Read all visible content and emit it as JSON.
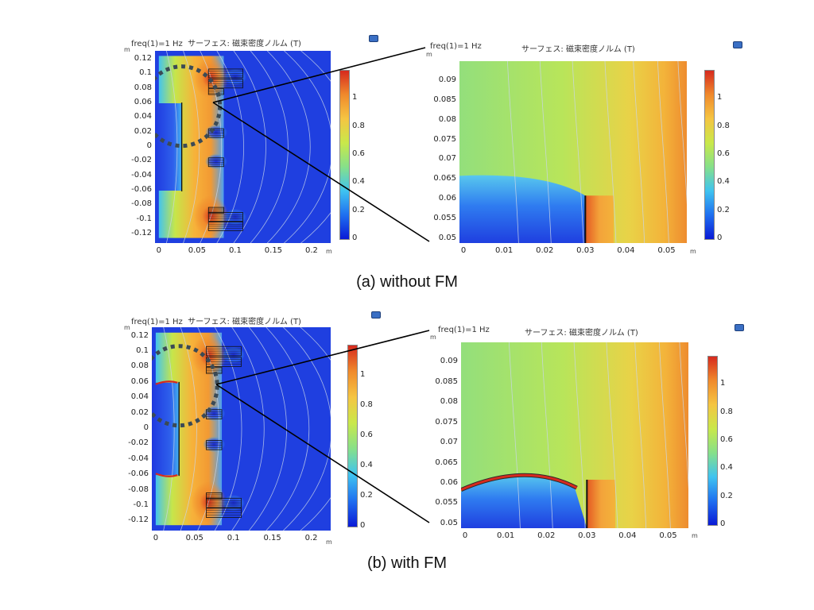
{
  "colors": {
    "field_low": "#1f3fe0",
    "field_high": "#e84a1e",
    "colormap": [
      "#0a1ad6",
      "#1f6ff0",
      "#3fc3f0",
      "#86e08a",
      "#c9e84a",
      "#f5c542",
      "#f08a2c",
      "#d62a1e"
    ],
    "circle": "#3b4a55",
    "contour": "#c9d6e8"
  },
  "captions": {
    "a": "(a) without FM",
    "b": "(b) with FM"
  },
  "chart_data": [
    {
      "id": "a-left",
      "type": "heatmap",
      "title": "freq(1)=1 Hz  サーフェス: 磁束密度ノルム (T)",
      "y_unit": "m",
      "x_unit": "m",
      "xticks": [
        "0",
        "0.05",
        "0.1",
        "0.15",
        "0.2"
      ],
      "yticks": [
        "0.12",
        "0.1",
        "0.08",
        "0.06",
        "0.04",
        "0.02",
        "0",
        "-0.02",
        "-0.04",
        "-0.06",
        "-0.08",
        "-0.1",
        "-0.12"
      ],
      "xlim": [
        -0.005,
        0.225
      ],
      "ylim": [
        -0.132,
        0.132
      ],
      "colorbar": {
        "ticks": [
          "1",
          "0.8",
          "0.6",
          "0.4",
          "0.2",
          "0"
        ],
        "range": [
          0,
          1.2
        ]
      },
      "has_fm": false
    },
    {
      "id": "a-right",
      "type": "heatmap",
      "title_left": "freq(1)=1 Hz",
      "title_right": "サーフェス: 磁束密度ノルム (T)",
      "y_unit": "m",
      "x_unit": "m",
      "xticks": [
        "0",
        "0.01",
        "0.02",
        "0.03",
        "0.04",
        "0.05"
      ],
      "yticks": [
        "0.09",
        "0.085",
        "0.08",
        "0.075",
        "0.07",
        "0.065",
        "0.06",
        "0.055",
        "0.05"
      ],
      "xlim": [
        -0.001,
        0.055
      ],
      "ylim": [
        0.049,
        0.095
      ],
      "colorbar": {
        "ticks": [
          "1",
          "0.8",
          "0.6",
          "0.4",
          "0.2",
          "0"
        ],
        "range": [
          0,
          1.2
        ]
      },
      "has_fm": false
    },
    {
      "id": "b-left",
      "type": "heatmap",
      "title": "freq(1)=1 Hz  サーフェス: 磁束密度ノルム (T)",
      "y_unit": "m",
      "x_unit": "m",
      "xticks": [
        "0",
        "0.05",
        "0.1",
        "0.15",
        "0.2"
      ],
      "yticks": [
        "0.12",
        "0.1",
        "0.08",
        "0.06",
        "0.04",
        "0.02",
        "0",
        "-0.02",
        "-0.04",
        "-0.06",
        "-0.08",
        "-0.1",
        "-0.12"
      ],
      "xlim": [
        -0.005,
        0.225
      ],
      "ylim": [
        -0.132,
        0.132
      ],
      "colorbar": {
        "ticks": [
          "1",
          "0.8",
          "0.6",
          "0.4",
          "0.2",
          "0"
        ],
        "range": [
          0,
          1.2
        ]
      },
      "has_fm": true
    },
    {
      "id": "b-right",
      "type": "heatmap",
      "title_left": "freq(1)=1 Hz",
      "title_right": "サーフェス: 磁束密度ノルム (T)",
      "y_unit": "m",
      "x_unit": "m",
      "xticks": [
        "0",
        "0.01",
        "0.02",
        "0.03",
        "0.04",
        "0.05"
      ],
      "yticks": [
        "0.09",
        "0.085",
        "0.08",
        "0.075",
        "0.07",
        "0.065",
        "0.06",
        "0.055",
        "0.05"
      ],
      "xlim": [
        -0.001,
        0.055
      ],
      "ylim": [
        0.049,
        0.095
      ],
      "colorbar": {
        "ticks": [
          "1",
          "0.8",
          "0.6",
          "0.4",
          "0.2",
          "0"
        ],
        "range": [
          0,
          1.2
        ]
      },
      "has_fm": true
    }
  ]
}
